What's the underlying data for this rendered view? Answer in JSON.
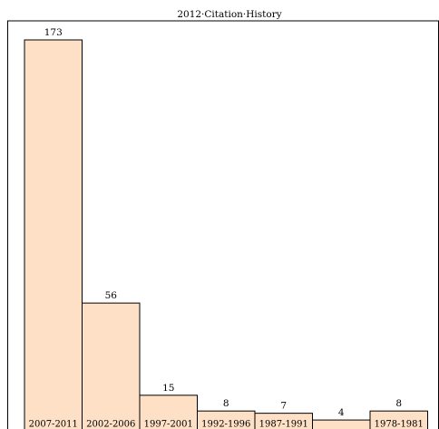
{
  "chart_data": {
    "type": "bar",
    "title": "2012·Citation·History",
    "categories": [
      "2007-2011",
      "2002-2006",
      "1997-2001",
      "1992-1996",
      "1987-1991",
      "",
      "1978-1981"
    ],
    "values": [
      173,
      56,
      15,
      8,
      7,
      4,
      8
    ],
    "xlabel": "",
    "ylabel": "",
    "ylim": [
      0,
      180
    ],
    "grid": false,
    "legend": "none",
    "bar_color": "#fde0c5",
    "bar_edge_color": "#000000"
  }
}
